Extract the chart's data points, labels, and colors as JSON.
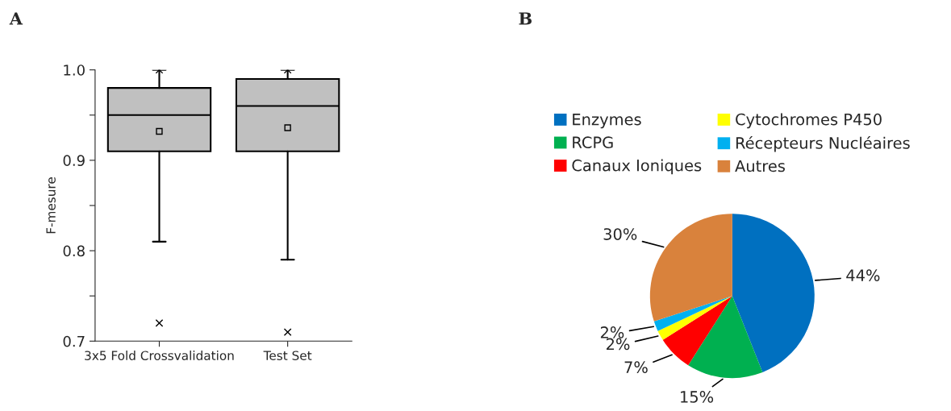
{
  "chart_data": [
    {
      "type": "box",
      "title": "A",
      "ylabel": "F-mesure",
      "categories": [
        "3x5 Fold Crossvalidation",
        "Test Set"
      ],
      "color": "#c0c0c0",
      "boxes": [
        {
          "low": 0.81,
          "q1": 0.91,
          "median": 0.95,
          "q3": 0.98,
          "high": 1.0,
          "mean": 0.932,
          "outliers": [
            0.72,
            1.0
          ]
        },
        {
          "low": 0.79,
          "q1": 0.91,
          "median": 0.96,
          "q3": 0.99,
          "high": 1.0,
          "mean": 0.936,
          "outliers": [
            0.71,
            1.0
          ]
        }
      ],
      "ylim": [
        0.7,
        1.0
      ],
      "yticks": [
        {
          "value": 0.7,
          "label": "0.7"
        },
        {
          "value": 0.75,
          "label": null
        },
        {
          "value": 0.8,
          "label": "0.8"
        },
        {
          "value": 0.85,
          "label": null
        },
        {
          "value": 0.9,
          "label": "0.9"
        },
        {
          "value": 0.95,
          "label": null
        },
        {
          "value": 1.0,
          "label": "1.0"
        }
      ],
      "grid": false
    },
    {
      "type": "pie",
      "title": "B",
      "categories": [
        "Enzymes",
        "RCPG",
        "Canaux Ioniques",
        "Cytochromes P450",
        "Récepteurs Nucléaires",
        "Autres"
      ],
      "values": [
        44,
        15,
        7,
        2,
        2,
        30
      ],
      "colors": [
        "#0070c0",
        "#00b050",
        "#ff0000",
        "#ffff00",
        "#00b0f0",
        "#d9823c"
      ],
      "value_labels": [
        "44%",
        "15%",
        "7%",
        "2%",
        "2%",
        "30%"
      ],
      "legend": "top"
    }
  ]
}
